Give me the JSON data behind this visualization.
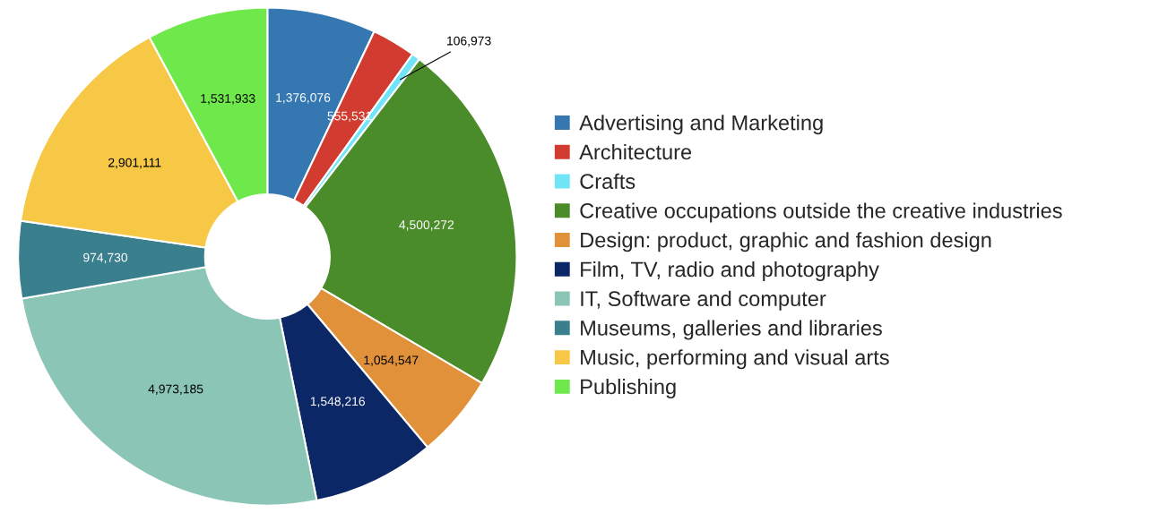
{
  "chart_data": {
    "type": "donut",
    "categories": [
      "Advertising and Marketing",
      "Architecture",
      "Crafts",
      "Creative occupations outside the creative industries",
      "Design: product, graphic and fashion design",
      "Film, TV, radio and photography",
      "IT, Software and computer",
      "Museums, galleries and libraries",
      "Music, performing and visual arts",
      "Publishing"
    ],
    "values": [
      1376076,
      555531,
      106973,
      4500272,
      1054547,
      1548216,
      4973185,
      974730,
      2901111,
      1531933
    ],
    "colors": [
      "#3577b0",
      "#d23c30",
      "#72e4f7",
      "#4a8c2a",
      "#e0913a",
      "#0b2766",
      "#8bc5b5",
      "#3a7f8e",
      "#f6c845",
      "#6fe84c"
    ],
    "value_labels": [
      "1,376,076",
      "555,531",
      "106,973",
      "4,500,272",
      "1,054,547",
      "1,548,216",
      "4,973,185",
      "974,730",
      "2,901,111",
      "1,531,933"
    ],
    "legend": "right"
  }
}
